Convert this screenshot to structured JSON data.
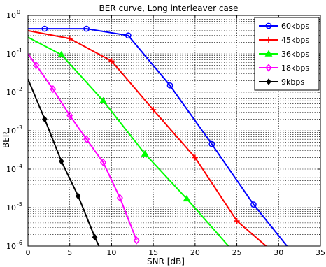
{
  "chart_data": {
    "type": "line",
    "title": "BER curve, Long interleaver case",
    "xlabel": "SNR [dB]",
    "ylabel": "BER",
    "x_scale": "linear",
    "y_scale": "log",
    "xlim": [
      0,
      35
    ],
    "ylim": [
      1e-06,
      1
    ],
    "x_ticks": [
      0,
      5,
      10,
      15,
      20,
      25,
      30,
      35
    ],
    "x_tick_labels": [
      "0",
      "5",
      "10",
      "15",
      "20",
      "25",
      "30",
      "35"
    ],
    "y_ticks": [
      1e-06,
      1e-05,
      0.0001,
      0.001,
      0.01,
      0.1,
      1
    ],
    "y_tick_labels": [
      {
        "base": "10",
        "exp": "-6"
      },
      {
        "base": "10",
        "exp": "-5"
      },
      {
        "base": "10",
        "exp": "-4"
      },
      {
        "base": "10",
        "exp": "-3"
      },
      {
        "base": "10",
        "exp": "-2"
      },
      {
        "base": "10",
        "exp": "-1"
      },
      {
        "base": "10",
        "exp": "0"
      }
    ],
    "grid": true,
    "legend_position": "top-right",
    "series": [
      {
        "name": "60kbps",
        "color": "#0000ff",
        "marker": "circle",
        "x": [
          0,
          2,
          7,
          12,
          17,
          22,
          27,
          31
        ],
        "y": [
          0.45,
          0.45,
          0.45,
          0.3,
          0.015,
          0.00045,
          1.2e-05,
          1e-06
        ],
        "marker_x": [
          2,
          7,
          12,
          17,
          22,
          27
        ]
      },
      {
        "name": "45kbps",
        "color": "#ff0000",
        "marker": "plus",
        "x": [
          0,
          5,
          10,
          15,
          20,
          25,
          28.5
        ],
        "y": [
          0.4,
          0.25,
          0.065,
          0.0035,
          0.0002,
          4.5e-06,
          1e-06
        ],
        "marker_x": [
          5,
          10,
          15,
          20,
          25
        ]
      },
      {
        "name": "36kbps",
        "color": "#00ff00",
        "marker": "triangle",
        "x": [
          0,
          4,
          9,
          14,
          19,
          24
        ],
        "y": [
          0.27,
          0.095,
          0.006,
          0.00025,
          1.7e-05,
          1e-06
        ],
        "marker_x": [
          4,
          9,
          14,
          19
        ]
      },
      {
        "name": "18kbps",
        "color": "#ff00ff",
        "marker": "diamond",
        "x": [
          0,
          1,
          3,
          5,
          7,
          9,
          11,
          13
        ],
        "y": [
          0.1,
          0.05,
          0.012,
          0.0025,
          0.0006,
          0.00015,
          1.8e-05,
          1.4e-06
        ],
        "marker_x": [
          1,
          3,
          5,
          7,
          9,
          11,
          13
        ]
      },
      {
        "name": "9kbps",
        "color": "#000000",
        "marker": "diamond-filled",
        "x": [
          0,
          2,
          4,
          6,
          8,
          8.5
        ],
        "y": [
          0.022,
          0.002,
          0.00016,
          2e-05,
          1.7e-06,
          1e-06
        ],
        "marker_x": [
          2,
          4,
          6,
          8
        ]
      }
    ]
  }
}
